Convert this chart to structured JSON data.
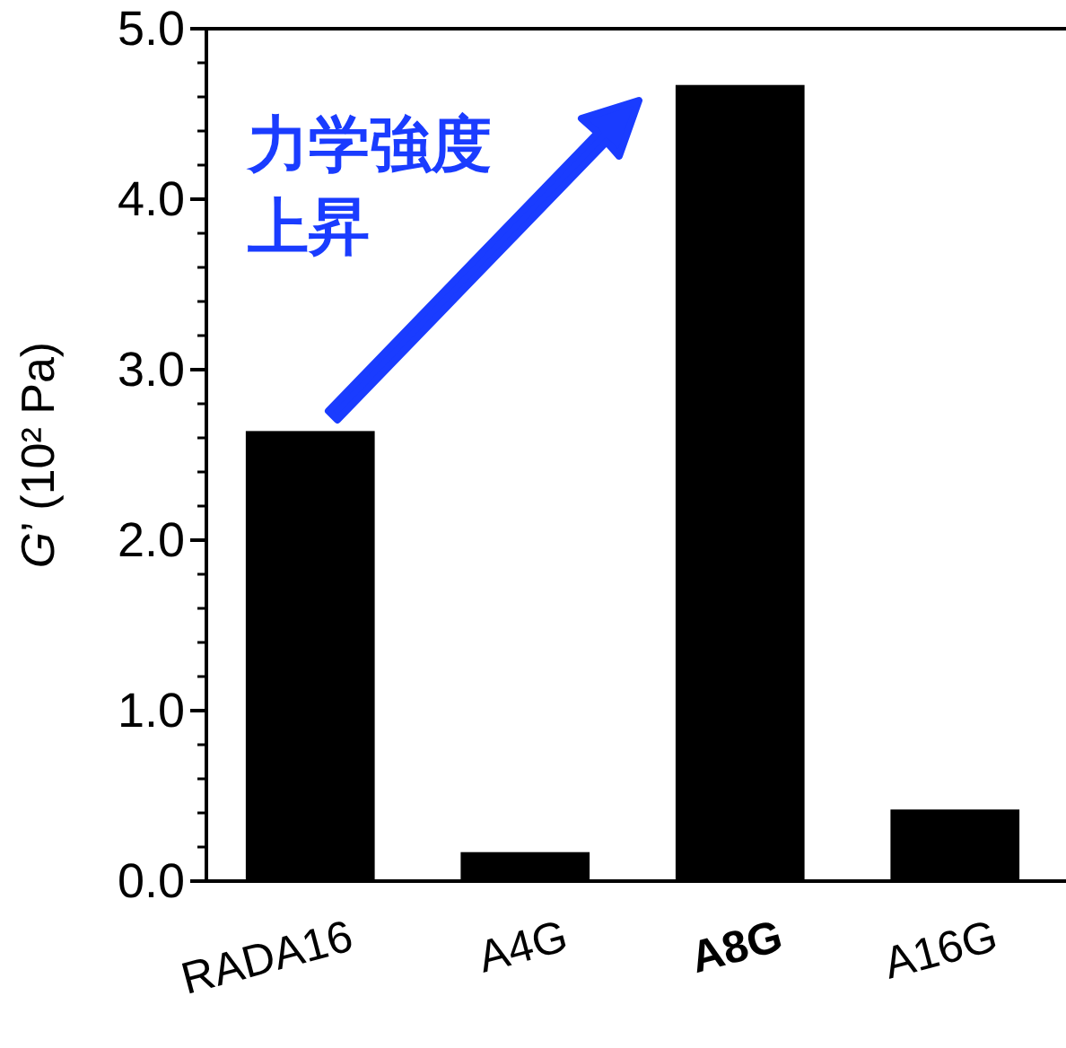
{
  "chart_data": {
    "type": "bar",
    "ylabel": "G’ (10² Pa)",
    "categories": [
      "RADA16",
      "A4G",
      "A8G",
      "A16G"
    ],
    "values": [
      2.64,
      0.17,
      4.67,
      0.42
    ],
    "color": "#000000",
    "ylim": [
      0,
      5
    ],
    "yticks": [
      {
        "value": 0,
        "label": "0.0"
      },
      {
        "value": 1,
        "label": "1.0"
      },
      {
        "value": 2,
        "label": "2.0"
      },
      {
        "value": 3,
        "label": "3.0"
      },
      {
        "value": 4,
        "label": "4.0"
      },
      {
        "value": 5,
        "label": "5.0"
      }
    ],
    "annotations": [
      "力学強度上昇"
    ]
  }
}
